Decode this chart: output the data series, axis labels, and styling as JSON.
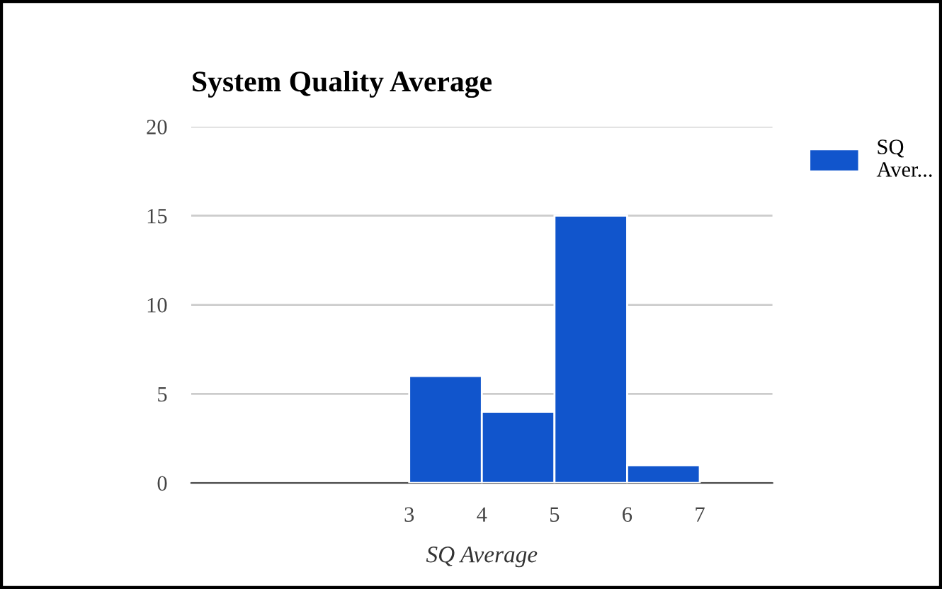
{
  "chart_data": {
    "type": "histogram",
    "title": "System Quality Average",
    "xlabel": "SQ Average",
    "bins": [
      3,
      4,
      5,
      6,
      7
    ],
    "series": [
      {
        "name": "SQ Aver...",
        "color": "#1155cc",
        "values": [
          6,
          4,
          15,
          1
        ]
      }
    ],
    "xlim": [
      0,
      8
    ],
    "xticks": [
      3,
      4,
      5,
      6,
      7
    ],
    "ylim": [
      0,
      20
    ],
    "yticks": [
      0,
      5,
      10,
      15,
      20
    ],
    "grid": "y",
    "legend": "top right"
  }
}
